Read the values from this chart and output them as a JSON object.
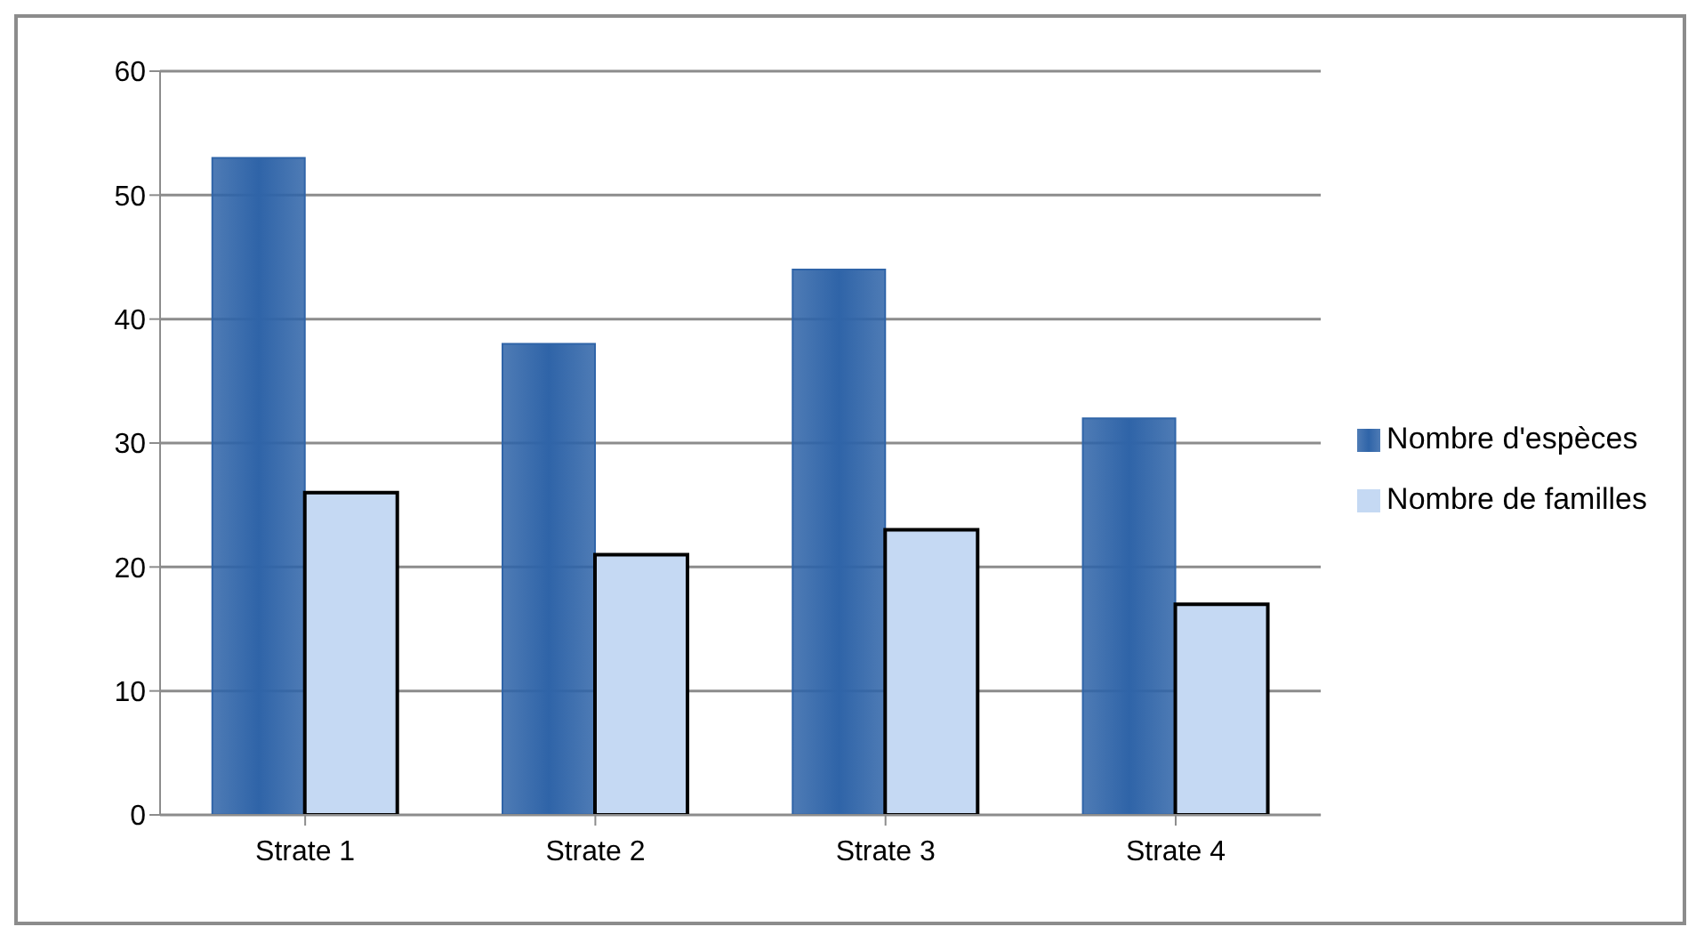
{
  "chart_data": {
    "type": "bar",
    "categories": [
      "Strate 1",
      "Strate 2",
      "Strate 3",
      "Strate 4"
    ],
    "series": [
      {
        "name": "Nombre d'espèces",
        "color": "#2f64a8",
        "values": [
          53,
          38,
          44,
          32
        ]
      },
      {
        "name": "Nombre de familles",
        "color": "#c5d9f3",
        "values": [
          26,
          21,
          23,
          17
        ]
      }
    ],
    "ylim": [
      0,
      60
    ],
    "yticks": [
      0,
      10,
      20,
      30,
      40,
      50,
      60
    ],
    "grid": "y",
    "legend": "right"
  }
}
